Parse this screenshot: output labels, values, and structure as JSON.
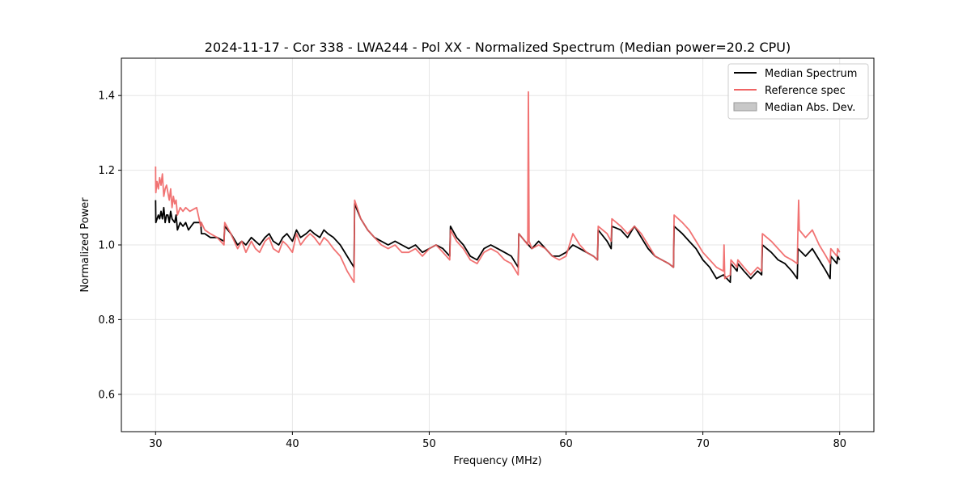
{
  "chart_data": {
    "type": "line",
    "title": "2024-11-17 - Cor 338 - LWA244 - Pol XX - Normalized Spectrum (Median power=20.2 CPU)",
    "xlabel": "Frequency (MHz)",
    "ylabel": "Normalized Power",
    "xlim": [
      27.5,
      82.5
    ],
    "ylim": [
      0.5,
      1.5
    ],
    "xticks": [
      30,
      40,
      50,
      60,
      70,
      80
    ],
    "yticks": [
      0.6,
      0.8,
      1.0,
      1.2,
      1.4
    ],
    "xtick_labels": [
      "30",
      "40",
      "50",
      "60",
      "70",
      "80"
    ],
    "ytick_labels": [
      "0.6",
      "0.8",
      "1.0",
      "1.2",
      "1.4"
    ],
    "grid": true,
    "legend_position": "top-right",
    "colors": {
      "median": "#000000",
      "reference": "#f06464",
      "mad_fill": "#c8c8c8",
      "grid": "#e6e6e6"
    },
    "legend": [
      {
        "label": "Median Spectrum",
        "kind": "line",
        "color": "#000000"
      },
      {
        "label": "Reference spec",
        "kind": "line",
        "color": "#f06464"
      },
      {
        "label": "Median Abs. Dev.",
        "kind": "patch",
        "color": "#c8c8c8"
      }
    ],
    "series": [
      {
        "name": "Median Spectrum",
        "color": "#000000",
        "x": [
          30.0,
          30.02,
          30.2,
          30.3,
          30.4,
          30.5,
          30.6,
          30.7,
          30.8,
          30.9,
          31.0,
          31.1,
          31.2,
          31.4,
          31.5,
          31.6,
          31.8,
          32.0,
          32.2,
          32.4,
          32.6,
          32.8,
          33.0,
          33.3,
          33.35,
          33.6,
          34.0,
          34.5,
          35.0,
          35.05,
          35.5,
          36.0,
          36.3,
          36.6,
          37.0,
          37.3,
          37.6,
          38.0,
          38.3,
          38.6,
          39.0,
          39.3,
          39.6,
          40.0,
          40.3,
          40.6,
          41.0,
          41.3,
          41.6,
          42.0,
          42.3,
          42.6,
          43.0,
          43.5,
          44.0,
          44.5,
          44.55,
          45.0,
          45.5,
          46.0,
          46.5,
          47.0,
          47.5,
          48.0,
          48.5,
          49.0,
          49.5,
          50.0,
          50.5,
          51.0,
          51.5,
          51.55,
          52.0,
          52.5,
          53.0,
          53.5,
          54.0,
          54.5,
          55.0,
          55.5,
          56.0,
          56.5,
          56.55,
          57.0,
          57.5,
          58.0,
          58.5,
          59.0,
          59.5,
          60.0,
          60.5,
          61.0,
          61.5,
          62.0,
          62.3,
          62.35,
          63.0,
          63.3,
          63.35,
          64.0,
          64.5,
          65.0,
          65.5,
          66.0,
          66.5,
          67.0,
          67.5,
          67.85,
          67.9,
          68.5,
          69.0,
          69.5,
          70.0,
          70.5,
          71.0,
          71.5,
          72.0,
          72.05,
          72.5,
          72.55,
          73.0,
          73.5,
          74.0,
          74.3,
          74.35,
          75.0,
          75.5,
          76.0,
          76.5,
          76.9,
          76.95,
          77.5,
          78.0,
          78.5,
          79.0,
          79.3,
          79.35,
          79.8,
          79.85,
          80.0
        ],
        "y": [
          1.12,
          1.06,
          1.08,
          1.07,
          1.09,
          1.07,
          1.1,
          1.06,
          1.08,
          1.08,
          1.06,
          1.09,
          1.07,
          1.06,
          1.08,
          1.04,
          1.06,
          1.05,
          1.06,
          1.04,
          1.05,
          1.06,
          1.06,
          1.06,
          1.03,
          1.03,
          1.02,
          1.02,
          1.01,
          1.05,
          1.03,
          1.0,
          1.01,
          1.0,
          1.02,
          1.01,
          1.0,
          1.02,
          1.03,
          1.01,
          1.0,
          1.02,
          1.03,
          1.01,
          1.04,
          1.02,
          1.03,
          1.04,
          1.03,
          1.02,
          1.04,
          1.03,
          1.02,
          1.0,
          0.97,
          0.94,
          1.11,
          1.07,
          1.04,
          1.02,
          1.01,
          1.0,
          1.01,
          1.0,
          0.99,
          1.0,
          0.98,
          0.99,
          1.0,
          0.99,
          0.97,
          1.05,
          1.02,
          1.0,
          0.97,
          0.96,
          0.99,
          1.0,
          0.99,
          0.98,
          0.97,
          0.94,
          1.03,
          1.01,
          0.99,
          1.01,
          0.99,
          0.97,
          0.97,
          0.98,
          1.0,
          0.99,
          0.98,
          0.97,
          0.96,
          1.04,
          1.01,
          0.99,
          1.05,
          1.04,
          1.02,
          1.05,
          1.02,
          0.99,
          0.97,
          0.96,
          0.95,
          0.94,
          1.05,
          1.03,
          1.01,
          0.99,
          0.96,
          0.94,
          0.91,
          0.92,
          0.9,
          0.95,
          0.93,
          0.95,
          0.93,
          0.91,
          0.93,
          0.92,
          1.0,
          0.98,
          0.96,
          0.95,
          0.93,
          0.91,
          0.99,
          0.97,
          0.99,
          0.96,
          0.93,
          0.91,
          0.97,
          0.95,
          0.97,
          0.96
        ]
      },
      {
        "name": "Reference spec",
        "color": "#f06464",
        "x": [
          30.0,
          30.01,
          30.02,
          30.1,
          30.2,
          30.3,
          30.4,
          30.5,
          30.6,
          30.7,
          30.8,
          30.9,
          31.0,
          31.1,
          31.2,
          31.3,
          31.4,
          31.5,
          31.6,
          31.8,
          32.0,
          32.2,
          32.5,
          33.0,
          33.3,
          33.35,
          33.6,
          34.0,
          34.5,
          35.0,
          35.05,
          35.5,
          36.0,
          36.3,
          36.6,
          37.0,
          37.3,
          37.6,
          38.0,
          38.3,
          38.6,
          39.0,
          39.3,
          39.6,
          40.0,
          40.3,
          40.6,
          41.0,
          41.3,
          41.6,
          42.0,
          42.3,
          42.6,
          43.0,
          43.5,
          44.0,
          44.5,
          44.55,
          45.0,
          45.5,
          46.0,
          46.5,
          47.0,
          47.5,
          48.0,
          48.5,
          49.0,
          49.5,
          50.0,
          50.5,
          51.0,
          51.5,
          51.55,
          52.0,
          52.5,
          53.0,
          53.5,
          54.0,
          54.5,
          55.0,
          55.5,
          56.0,
          56.5,
          56.55,
          57.0,
          57.2,
          57.25,
          57.3,
          57.5,
          58.0,
          58.5,
          59.0,
          59.5,
          60.0,
          60.5,
          61.0,
          61.5,
          62.0,
          62.3,
          62.35,
          63.0,
          63.3,
          63.35,
          64.0,
          64.5,
          65.0,
          65.5,
          66.0,
          66.5,
          67.0,
          67.5,
          67.85,
          67.9,
          68.5,
          69.0,
          69.5,
          70.0,
          70.5,
          71.0,
          71.5,
          71.55,
          71.6,
          72.0,
          72.05,
          72.5,
          72.55,
          73.0,
          73.5,
          74.0,
          74.3,
          74.35,
          75.0,
          75.5,
          76.0,
          76.5,
          76.9,
          76.95,
          77.0,
          77.05,
          77.5,
          78.0,
          78.5,
          79.0,
          79.3,
          79.35,
          79.8,
          79.85,
          80.0
        ],
        "y": [
          1.21,
          1.16,
          1.14,
          1.17,
          1.15,
          1.18,
          1.16,
          1.19,
          1.13,
          1.15,
          1.16,
          1.14,
          1.12,
          1.15,
          1.1,
          1.13,
          1.11,
          1.12,
          1.08,
          1.1,
          1.09,
          1.1,
          1.09,
          1.1,
          1.05,
          1.06,
          1.04,
          1.03,
          1.02,
          1.0,
          1.06,
          1.03,
          0.99,
          1.01,
          0.98,
          1.01,
          0.99,
          0.98,
          1.01,
          1.02,
          0.99,
          0.98,
          1.01,
          1.0,
          0.98,
          1.03,
          1.0,
          1.02,
          1.03,
          1.02,
          1.0,
          1.02,
          1.01,
          0.99,
          0.97,
          0.93,
          0.9,
          1.12,
          1.07,
          1.04,
          1.02,
          1.0,
          0.99,
          1.0,
          0.98,
          0.98,
          0.99,
          0.97,
          0.99,
          1.0,
          0.98,
          0.96,
          1.04,
          1.01,
          0.99,
          0.96,
          0.95,
          0.98,
          0.99,
          0.98,
          0.96,
          0.95,
          0.92,
          1.03,
          1.01,
          1.0,
          1.41,
          1.01,
          0.99,
          1.0,
          0.99,
          0.97,
          0.96,
          0.97,
          1.03,
          1.0,
          0.98,
          0.97,
          0.96,
          1.05,
          1.03,
          1.01,
          1.07,
          1.05,
          1.03,
          1.05,
          1.03,
          1.0,
          0.97,
          0.96,
          0.95,
          0.94,
          1.08,
          1.06,
          1.04,
          1.01,
          0.98,
          0.96,
          0.94,
          0.93,
          1.0,
          0.91,
          0.92,
          0.96,
          0.94,
          0.96,
          0.94,
          0.92,
          0.94,
          0.93,
          1.03,
          1.01,
          0.99,
          0.97,
          0.96,
          0.95,
          1.05,
          1.12,
          1.04,
          1.02,
          1.04,
          1.0,
          0.97,
          0.95,
          0.99,
          0.97,
          0.99,
          0.98
        ]
      }
    ]
  }
}
